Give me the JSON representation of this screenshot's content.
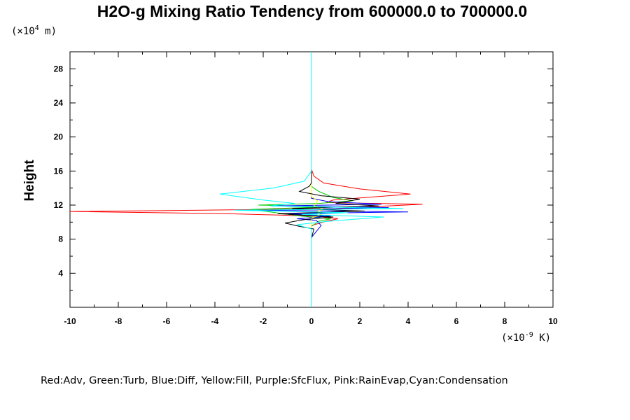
{
  "chart_data": {
    "type": "line",
    "title": "H2O-g Mixing Ratio Tendency from 600000.0 to 700000.0",
    "ylabel": "Height",
    "x_unit": {
      "prefix": "(×10",
      "exp": "-9",
      "suffix": " K)"
    },
    "y_unit": {
      "prefix": "(×10",
      "exp": "4",
      "suffix": " m)"
    },
    "xlim": [
      -10,
      10
    ],
    "ylim": [
      0,
      30
    ],
    "x_ticks": [
      -10,
      -8,
      -6,
      -4,
      -2,
      0,
      2,
      4,
      6,
      8,
      10
    ],
    "y_ticks": [
      4,
      8,
      12,
      16,
      20,
      24,
      28
    ],
    "caption": "Red:Adv,  Green:Turb,  Blue:Diff,  Yellow:Fill,  Purple:SfcFlux,  Pink:RainEvap,Cyan:Condensation",
    "series": [
      {
        "color": "#ff0000",
        "points": [
          [
            0,
            0
          ],
          [
            0,
            8.2
          ],
          [
            0,
            9.6
          ],
          [
            0.6,
            10.1
          ],
          [
            1.1,
            10.4
          ],
          [
            0.2,
            10.7
          ],
          [
            -3.5,
            11.0
          ],
          [
            -10,
            11.25
          ],
          [
            -4.5,
            11.4
          ],
          [
            1.0,
            11.6
          ],
          [
            4.6,
            12.1
          ],
          [
            0.6,
            12.3
          ],
          [
            0.9,
            12.6
          ],
          [
            4.1,
            13.3
          ],
          [
            2.0,
            13.9
          ],
          [
            0.5,
            14.6
          ],
          [
            0.1,
            15.4
          ],
          [
            0,
            16.2
          ],
          [
            0,
            30
          ]
        ]
      },
      {
        "color": "#00cc00",
        "points": [
          [
            0,
            0
          ],
          [
            0,
            9.5
          ],
          [
            0.3,
            10.1
          ],
          [
            0.8,
            10.4
          ],
          [
            -0.4,
            10.7
          ],
          [
            -2.5,
            11.5
          ],
          [
            0.8,
            11.8
          ],
          [
            -2.2,
            12.0
          ],
          [
            0.3,
            12.2
          ],
          [
            1.7,
            12.5
          ],
          [
            0.9,
            12.9
          ],
          [
            0.3,
            13.6
          ],
          [
            0,
            14.2
          ],
          [
            0,
            30
          ]
        ]
      },
      {
        "color": "#0000ff",
        "points": [
          [
            0,
            0
          ],
          [
            0,
            8.2
          ],
          [
            0.4,
            9.6
          ],
          [
            0.2,
            10.2
          ],
          [
            -0.6,
            10.4
          ],
          [
            0.8,
            10.7
          ],
          [
            -1.0,
            11.0
          ],
          [
            4.0,
            11.2
          ],
          [
            -2.2,
            11.4
          ],
          [
            3.2,
            11.7
          ],
          [
            -1.6,
            11.9
          ],
          [
            2.9,
            12.1
          ],
          [
            0.7,
            12.4
          ],
          [
            0,
            12.8
          ],
          [
            0,
            30
          ]
        ]
      },
      {
        "color": "#ffff00",
        "points": [
          [
            0,
            0
          ],
          [
            0,
            10.5
          ],
          [
            0.4,
            10.9
          ],
          [
            0.2,
            11.2
          ],
          [
            0.5,
            11.5
          ],
          [
            0.1,
            11.9
          ],
          [
            0.25,
            12.5
          ],
          [
            0,
            13.0
          ],
          [
            0,
            30
          ]
        ]
      },
      {
        "color": "#000000",
        "points": [
          [
            0,
            0
          ],
          [
            0,
            8.1
          ],
          [
            0.1,
            9.2
          ],
          [
            -0.5,
            9.5
          ],
          [
            -1.1,
            9.9
          ],
          [
            -0.3,
            10.3
          ],
          [
            0.9,
            10.6
          ],
          [
            -1.4,
            11.0
          ],
          [
            2.2,
            11.3
          ],
          [
            -0.8,
            11.6
          ],
          [
            2.8,
            11.9
          ],
          [
            1.0,
            12.2
          ],
          [
            2.0,
            12.7
          ],
          [
            0.4,
            13.1
          ],
          [
            -0.5,
            13.6
          ],
          [
            -0.1,
            14.2
          ],
          [
            0,
            14.6
          ],
          [
            0,
            30
          ]
        ]
      },
      {
        "color": "#00ffff",
        "points": [
          [
            0,
            0
          ],
          [
            0,
            9.2
          ],
          [
            -0.6,
            9.7
          ],
          [
            0.7,
            10.1
          ],
          [
            3.0,
            10.6
          ],
          [
            -0.4,
            10.9
          ],
          [
            1.5,
            11.1
          ],
          [
            -3.2,
            11.4
          ],
          [
            3.8,
            11.6
          ],
          [
            -1.7,
            11.9
          ],
          [
            -0.7,
            12.2
          ],
          [
            -2.0,
            12.6
          ],
          [
            -3.8,
            13.3
          ],
          [
            -1.6,
            14.0
          ],
          [
            -0.3,
            14.8
          ],
          [
            0,
            16.0
          ],
          [
            0,
            30
          ]
        ]
      }
    ]
  }
}
